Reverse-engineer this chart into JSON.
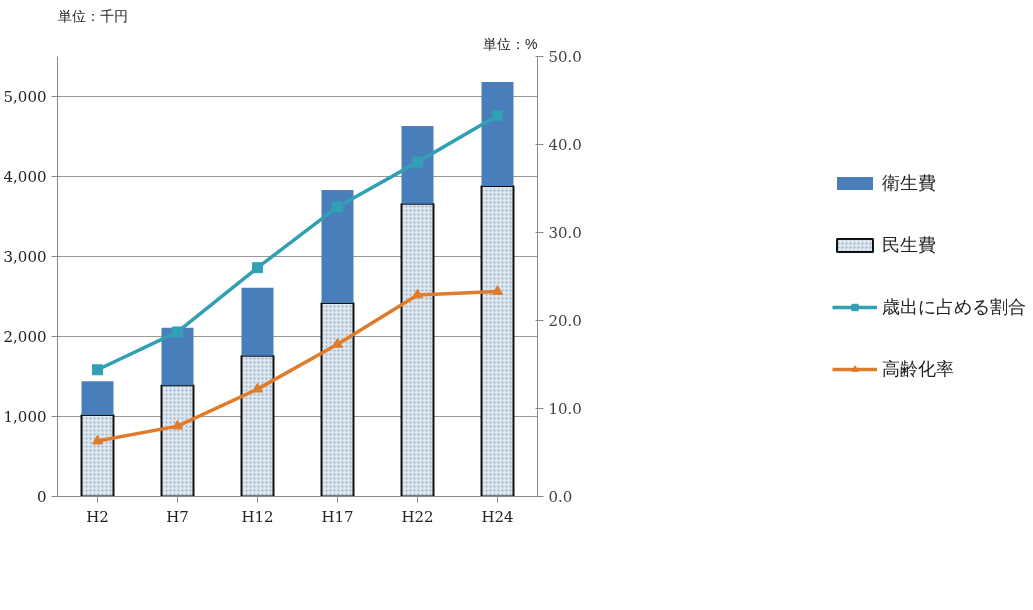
{
  "chart_data": {
    "type": "bar",
    "stacked": true,
    "ylabel": "単位：千円",
    "y2label": "単位：%",
    "categories": [
      "H2",
      "H7",
      "H12",
      "H17",
      "H22",
      "H24"
    ],
    "series": [
      {
        "name": "民生費",
        "color": "#dce6f0",
        "values": [
          1020,
          1390,
          1760,
          2420,
          3660,
          3880
        ]
      },
      {
        "name": "衛生費",
        "color": "#4a7ebb",
        "values": [
          420,
          720,
          850,
          1410,
          970,
          1300
        ]
      },
      {
        "name": "歳出に占める割合",
        "type": "line",
        "axis": "y2",
        "marker": "square",
        "color": "#31a0b4",
        "values": [
          14.4,
          18.7,
          26.0,
          32.9,
          38.0,
          43.3
        ]
      },
      {
        "name": "高齢化率",
        "type": "line",
        "axis": "y2",
        "marker": "triangle",
        "color": "#e07b2a",
        "values": [
          6.3,
          8.0,
          12.2,
          17.3,
          22.9,
          23.3
        ]
      }
    ],
    "ylim": [
      0,
      5500
    ],
    "yticks": [
      0,
      {
        "value": 1000,
        "label": "1,000"
      },
      {
        "value": 2000,
        "label": "2,000"
      },
      {
        "value": 3000,
        "label": "3,000"
      },
      {
        "value": 4000,
        "label": "4,000"
      },
      {
        "value": 5000,
        "label": "5,000"
      }
    ],
    "y2lim": [
      0,
      50
    ],
    "y2ticks": [
      {
        "value": 0,
        "label": "0.0"
      },
      {
        "value": 10,
        "label": "10.0"
      },
      {
        "value": 20,
        "label": "20.0"
      },
      {
        "value": 30,
        "label": "30.0"
      },
      {
        "value": 40,
        "label": "40.0"
      },
      {
        "value": 50,
        "label": "50.0"
      }
    ],
    "grid": "y",
    "legend": "right"
  }
}
